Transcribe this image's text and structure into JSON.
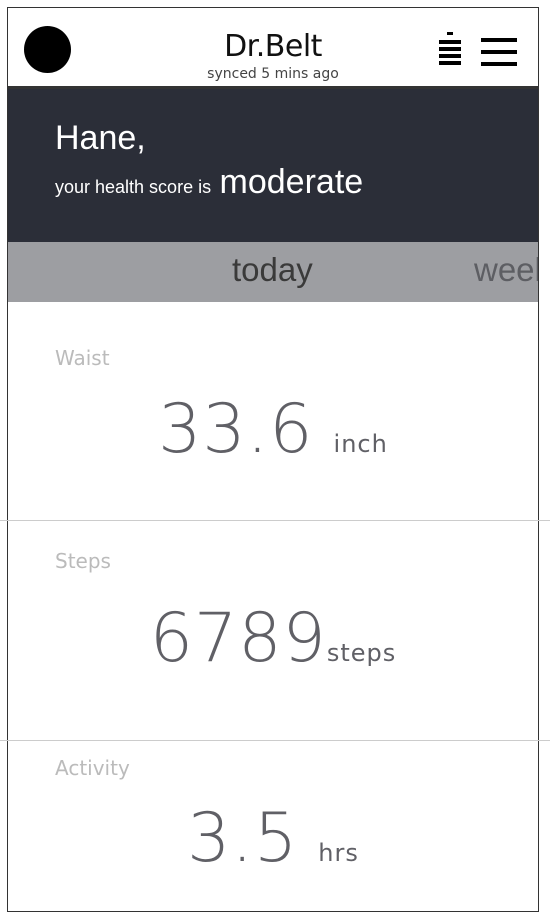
{
  "app": {
    "title": "Dr.Belt",
    "sync_status": "synced 5 mins ago"
  },
  "icons": {
    "avatar": "avatar-circle",
    "battery": "battery-icon",
    "menu": "hamburger-menu-icon"
  },
  "banner": {
    "greeting": "Hane,",
    "score_prefix": "your health score is",
    "score_value": "moderate"
  },
  "tabs": [
    {
      "label": "today"
    },
    {
      "label": "week"
    }
  ],
  "metrics": [
    {
      "label": "Waist",
      "value": "33.6",
      "unit": "inch"
    },
    {
      "label": "Steps",
      "value": "6789",
      "unit": "steps"
    },
    {
      "label": "Activity",
      "value": "3.5",
      "unit": "hrs"
    }
  ],
  "colors": {
    "banner_bg": "#2b2e38",
    "tab_bar_bg": "#9d9ea2",
    "metric_value": "#606066",
    "metric_label": "#bbbbbb"
  }
}
